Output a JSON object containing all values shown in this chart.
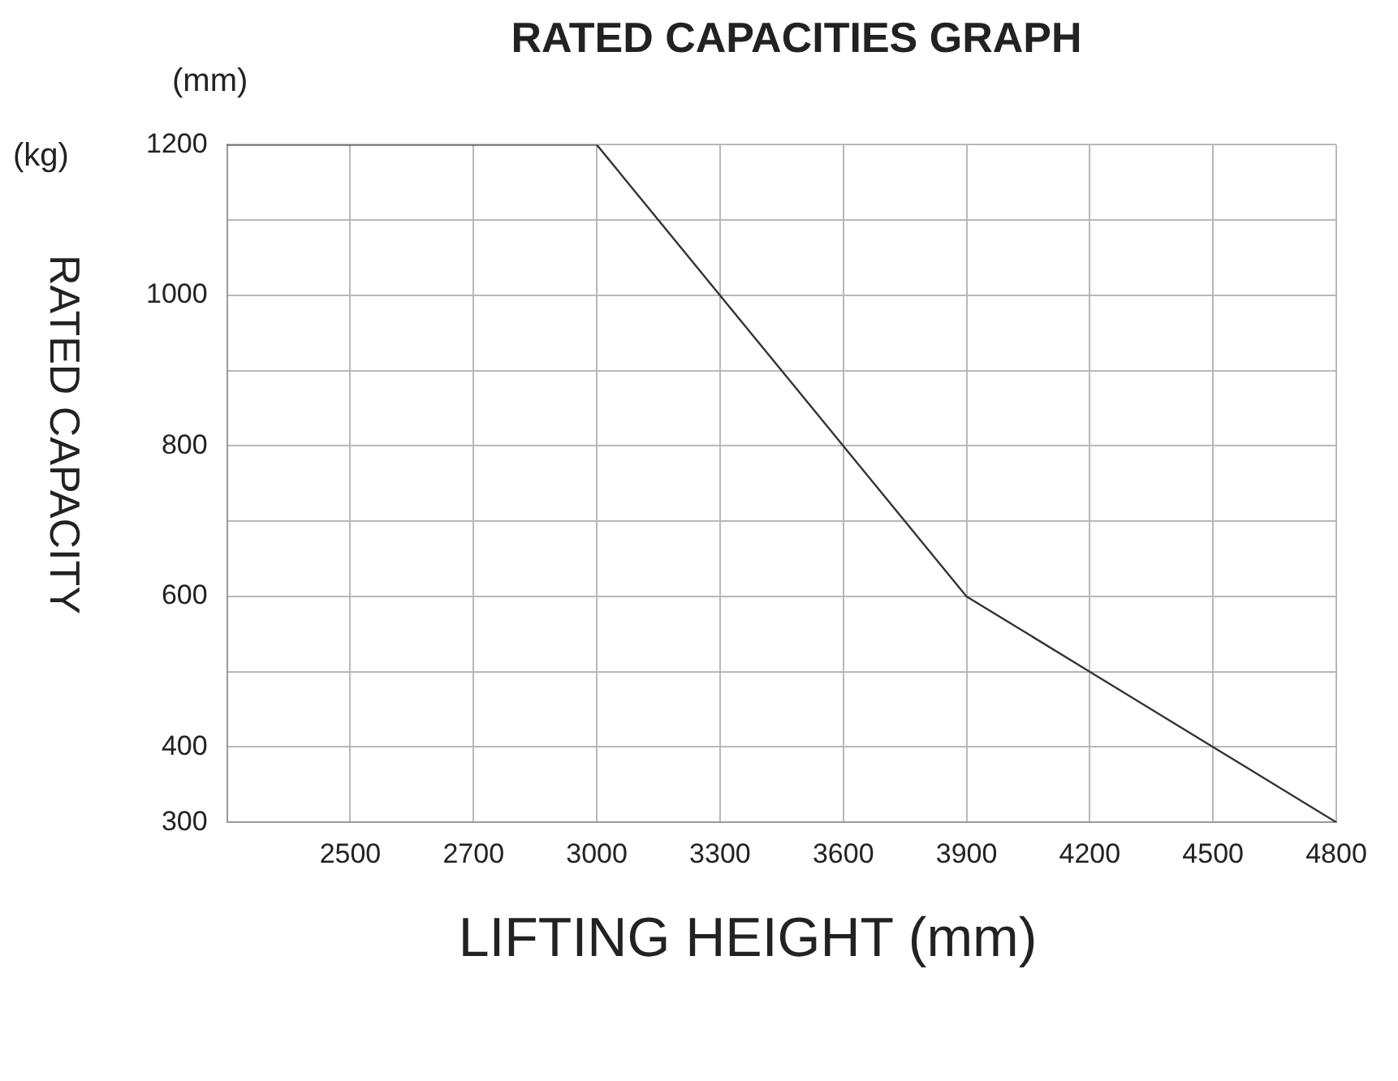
{
  "chart_data": {
    "type": "line",
    "title": "RATED CAPACITIES GRAPH",
    "ylabel": "RATED CAPACITY",
    "xlabel": "LIFTING HEIGHT (mm)",
    "annotations": [
      "(mm)",
      "(kg)"
    ],
    "categories": [
      null,
      "2500",
      "2700",
      "3000",
      "3300",
      "3600",
      "3900",
      "4200",
      "4500",
      "4800"
    ],
    "series": [
      {
        "color": "#333333",
        "values": [
          1200,
          1200,
          1200,
          1200,
          1000,
          800,
          600,
          500,
          400,
          300
        ]
      }
    ],
    "ylim": [
      300,
      1200
    ],
    "yticks": [
      300,
      400,
      {
        "value": 500,
        "label": null
      },
      600,
      {
        "value": 700,
        "label": null
      },
      800,
      {
        "value": 900,
        "label": null
      },
      1000,
      {
        "value": 1100,
        "label": null
      },
      1200
    ],
    "grid": true,
    "legend": false,
    "marker": "none",
    "line_style": "solid"
  }
}
